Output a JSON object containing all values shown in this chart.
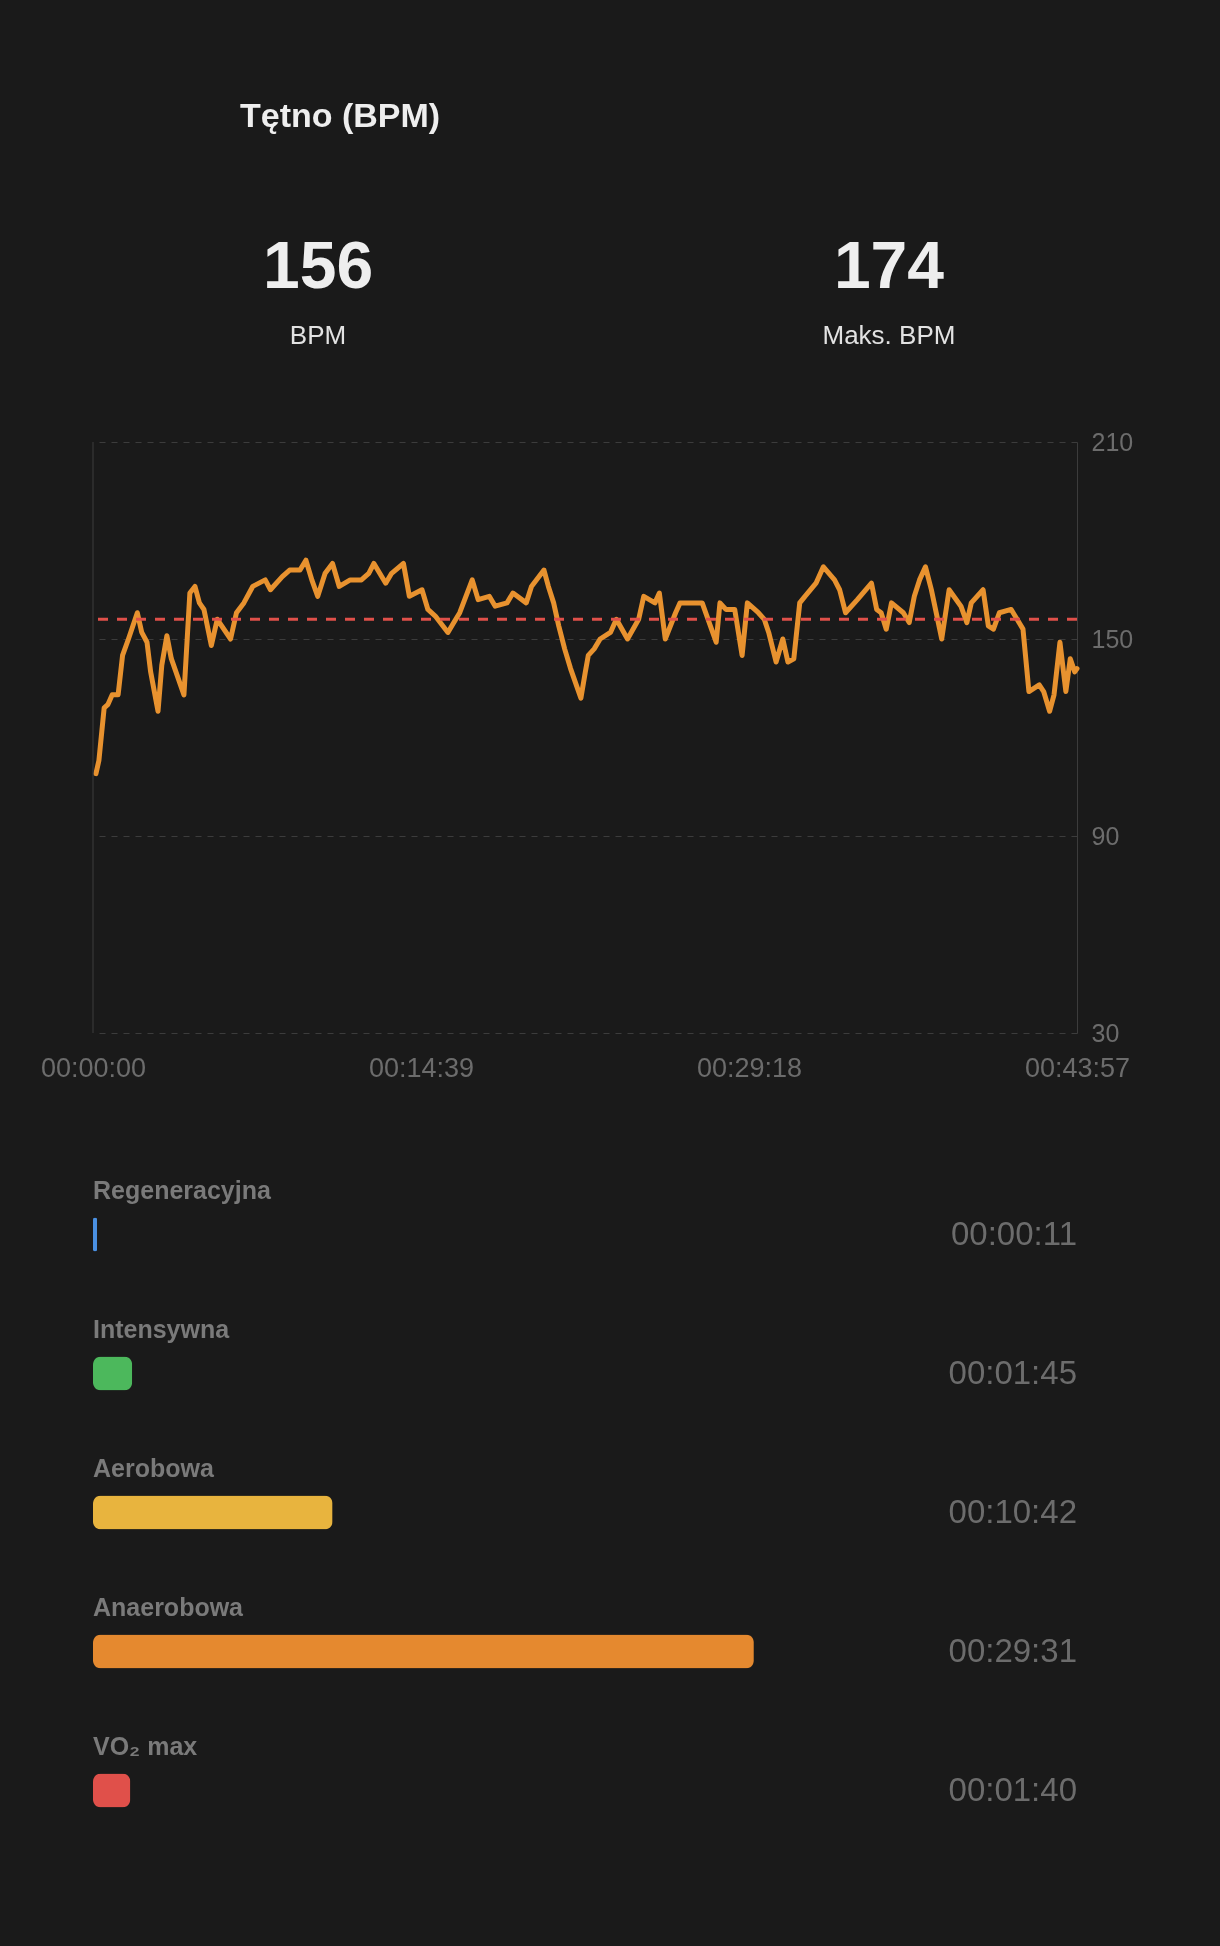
{
  "chart_data": [
    {
      "type": "other",
      "title": "Tętno (BPM)",
      "annotations": [
        "156",
        "BPM",
        "174",
        "Maks. BPM"
      ]
    },
    {
      "type": "line",
      "x": [
        0.0022,
        0.0044,
        0.0083,
        0.011,
        0.0143,
        0.0187,
        0.022,
        0.0264,
        0.033,
        0.0363,
        0.0402,
        0.0429,
        0.0484,
        0.0512,
        0.055,
        0.0583,
        0.0677,
        0.0721,
        0.0759,
        0.0792,
        0.0826,
        0.0881,
        0.0925,
        0.1024,
        0.1068,
        0.1123,
        0.1189,
        0.1282,
        0.1321,
        0.1409,
        0.1464,
        0.1541,
        0.1585,
        0.1629,
        0.1673,
        0.1728,
        0.1783,
        0.1833,
        0.1915,
        0.1998,
        0.2053,
        0.2091,
        0.2179,
        0.2223,
        0.2311,
        0.2355,
        0.2449,
        0.2493,
        0.2548,
        0.2642,
        0.2686,
        0.273,
        0.2823,
        0.2867,
        0.295,
        0.2994,
        0.3082,
        0.3126,
        0.3225,
        0.3264,
        0.3357,
        0.339,
        0.3429,
        0.3467,
        0.3511,
        0.3555,
        0.3632,
        0.3665,
        0.3687,
        0.3731,
        0.3775,
        0.3852,
        0.3896,
        0.3979,
        0.4062,
        0.41,
        0.4183,
        0.4216,
        0.426,
        0.4337,
        0.437,
        0.4447,
        0.4535,
        0.4639,
        0.4667,
        0.4711,
        0.4777,
        0.4832,
        0.4871,
        0.4953,
        0.4997,
        0.503,
        0.5085,
        0.5135,
        0.5173,
        0.5217,
        0.5261,
        0.53,
        0.5382,
        0.5437,
        0.552,
        0.5558,
        0.5602,
        0.569,
        0.5795,
        0.5834,
        0.5867,
        0.5905,
        0.5944,
        0.6032,
        0.6076,
        0.6114,
        0.6153,
        0.6197,
        0.6241,
        0.6318,
        0.6373,
        0.6461,
        0.6505,
        0.6538,
        0.6626,
        0.6665,
        0.6703,
        0.6747,
        0.6835,
        0.6879,
        0.6923,
        0.6967,
        0.7044,
        0.7077,
        0.7121,
        0.7154,
        0.7198,
        0.7242,
        0.7275,
        0.7308,
        0.7325
      ],
      "series": [
        {
          "color": "#e8922f",
          "values": [
            109,
            113,
            129,
            130,
            133,
            133,
            145,
            150,
            158,
            152,
            149,
            140,
            128,
            142,
            151,
            144,
            133,
            164,
            166,
            161,
            159,
            148,
            156,
            150,
            158,
            161,
            166,
            168,
            165,
            169,
            171,
            171,
            174,
            168,
            163,
            170,
            173,
            166,
            168,
            168,
            170,
            173,
            167,
            170,
            173,
            163,
            165,
            159,
            157,
            152,
            155,
            158,
            168,
            162,
            163,
            160,
            161,
            164,
            161,
            166,
            171,
            166,
            161,
            154,
            147,
            141,
            132,
            140,
            145,
            147,
            150,
            152,
            156,
            150,
            156,
            163,
            161,
            164,
            150,
            158,
            161,
            161,
            161,
            149,
            161,
            159,
            159,
            145,
            161,
            158,
            156,
            152,
            143,
            150,
            143,
            144,
            161,
            163,
            167,
            172,
            168,
            165,
            158,
            162,
            167,
            159,
            158,
            153,
            161,
            158,
            155,
            163,
            168,
            172,
            165,
            150,
            165,
            160,
            155,
            161,
            165,
            154,
            153,
            158,
            159,
            156,
            153,
            134,
            136,
            134,
            128,
            133,
            149,
            134,
            144,
            140,
            141
          ]
        }
      ],
      "xlim": [
        0,
        0.7325
      ],
      "xticks": [
        {
          "value": 0,
          "label": "00:00:00"
        },
        {
          "value": 0.24417,
          "label": "00:14:39"
        },
        {
          "value": 0.48833,
          "label": "00:29:18"
        },
        {
          "value": 0.7325,
          "label": "00:43:57"
        }
      ],
      "ylim": [
        30,
        210
      ],
      "yticks": [
        30,
        90,
        150,
        210
      ],
      "grid": "y",
      "line_style": "solid",
      "ref_lines": [
        {
          "axis": "y",
          "value": 156,
          "color": "#e0504a",
          "line_style": "dashed"
        }
      ]
    },
    {
      "type": "bar",
      "orientation": "horizontal",
      "categories": [
        "Regeneracyjna",
        "Intensywna",
        "Aerobowa",
        "Anaerobowa",
        "VO₂ max"
      ],
      "values": [
        0.0030556,
        0.0291667,
        0.1783333,
        0.4919444,
        0.0277778
      ],
      "colors": [
        "#4a90e2",
        "#4cb85c",
        "#e8b43e",
        "#e5892f",
        "#e0504a"
      ],
      "value_labels": [
        "00:00:11",
        "00:01:45",
        "00:10:42",
        "00:29:31",
        "00:01:40"
      ],
      "xlim": [
        0,
        0.7325
      ],
      "tick_labels": "y"
    }
  ]
}
